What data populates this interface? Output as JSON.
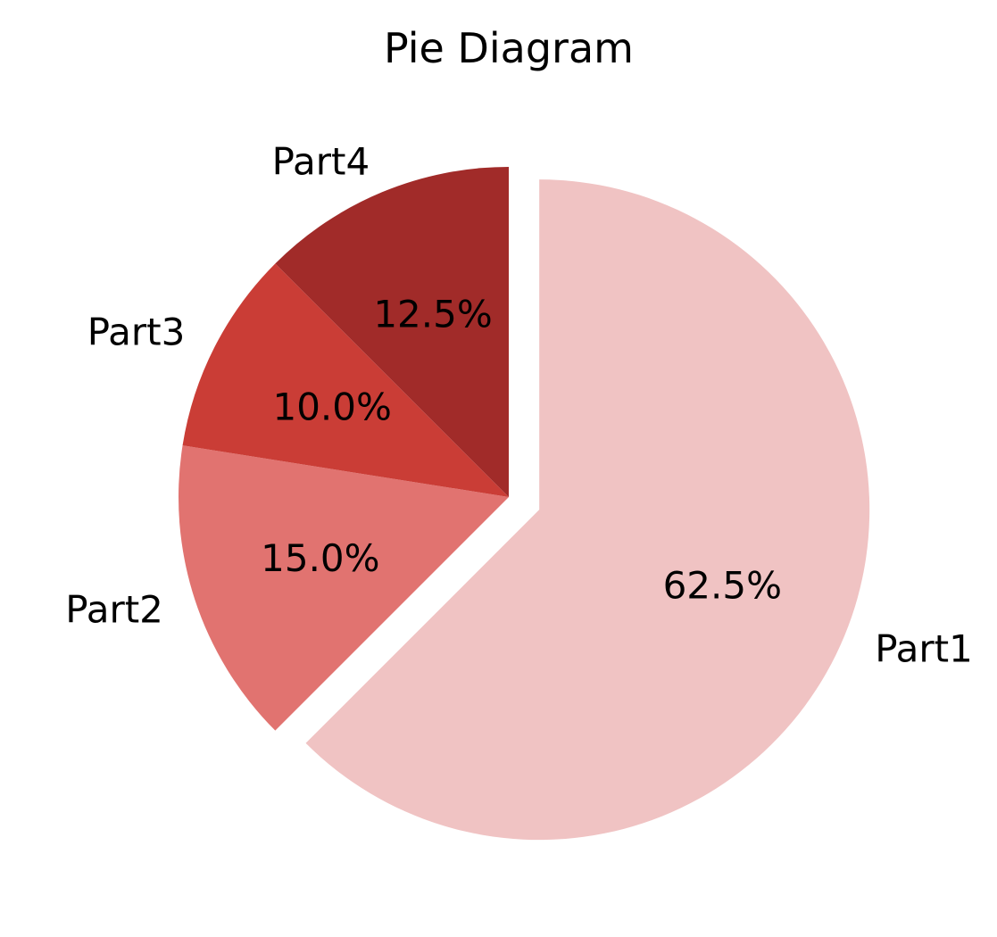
{
  "chart_data": {
    "type": "pie",
    "title": "Pie Diagram",
    "categories": [
      "Part1",
      "Part2",
      "Part3",
      "Part4"
    ],
    "values": [
      62.5,
      15.0,
      10.0,
      12.5
    ],
    "percent_labels": [
      "62.5%",
      "15.0%",
      "10.0%",
      "12.5%"
    ],
    "colors": [
      "#f0c3c3",
      "#e17370",
      "#ca3d36",
      "#a12b29"
    ],
    "explode": [
      0.1,
      0,
      0,
      0
    ],
    "start_angle_deg": 90,
    "direction": "clockwise",
    "legend": "none"
  }
}
